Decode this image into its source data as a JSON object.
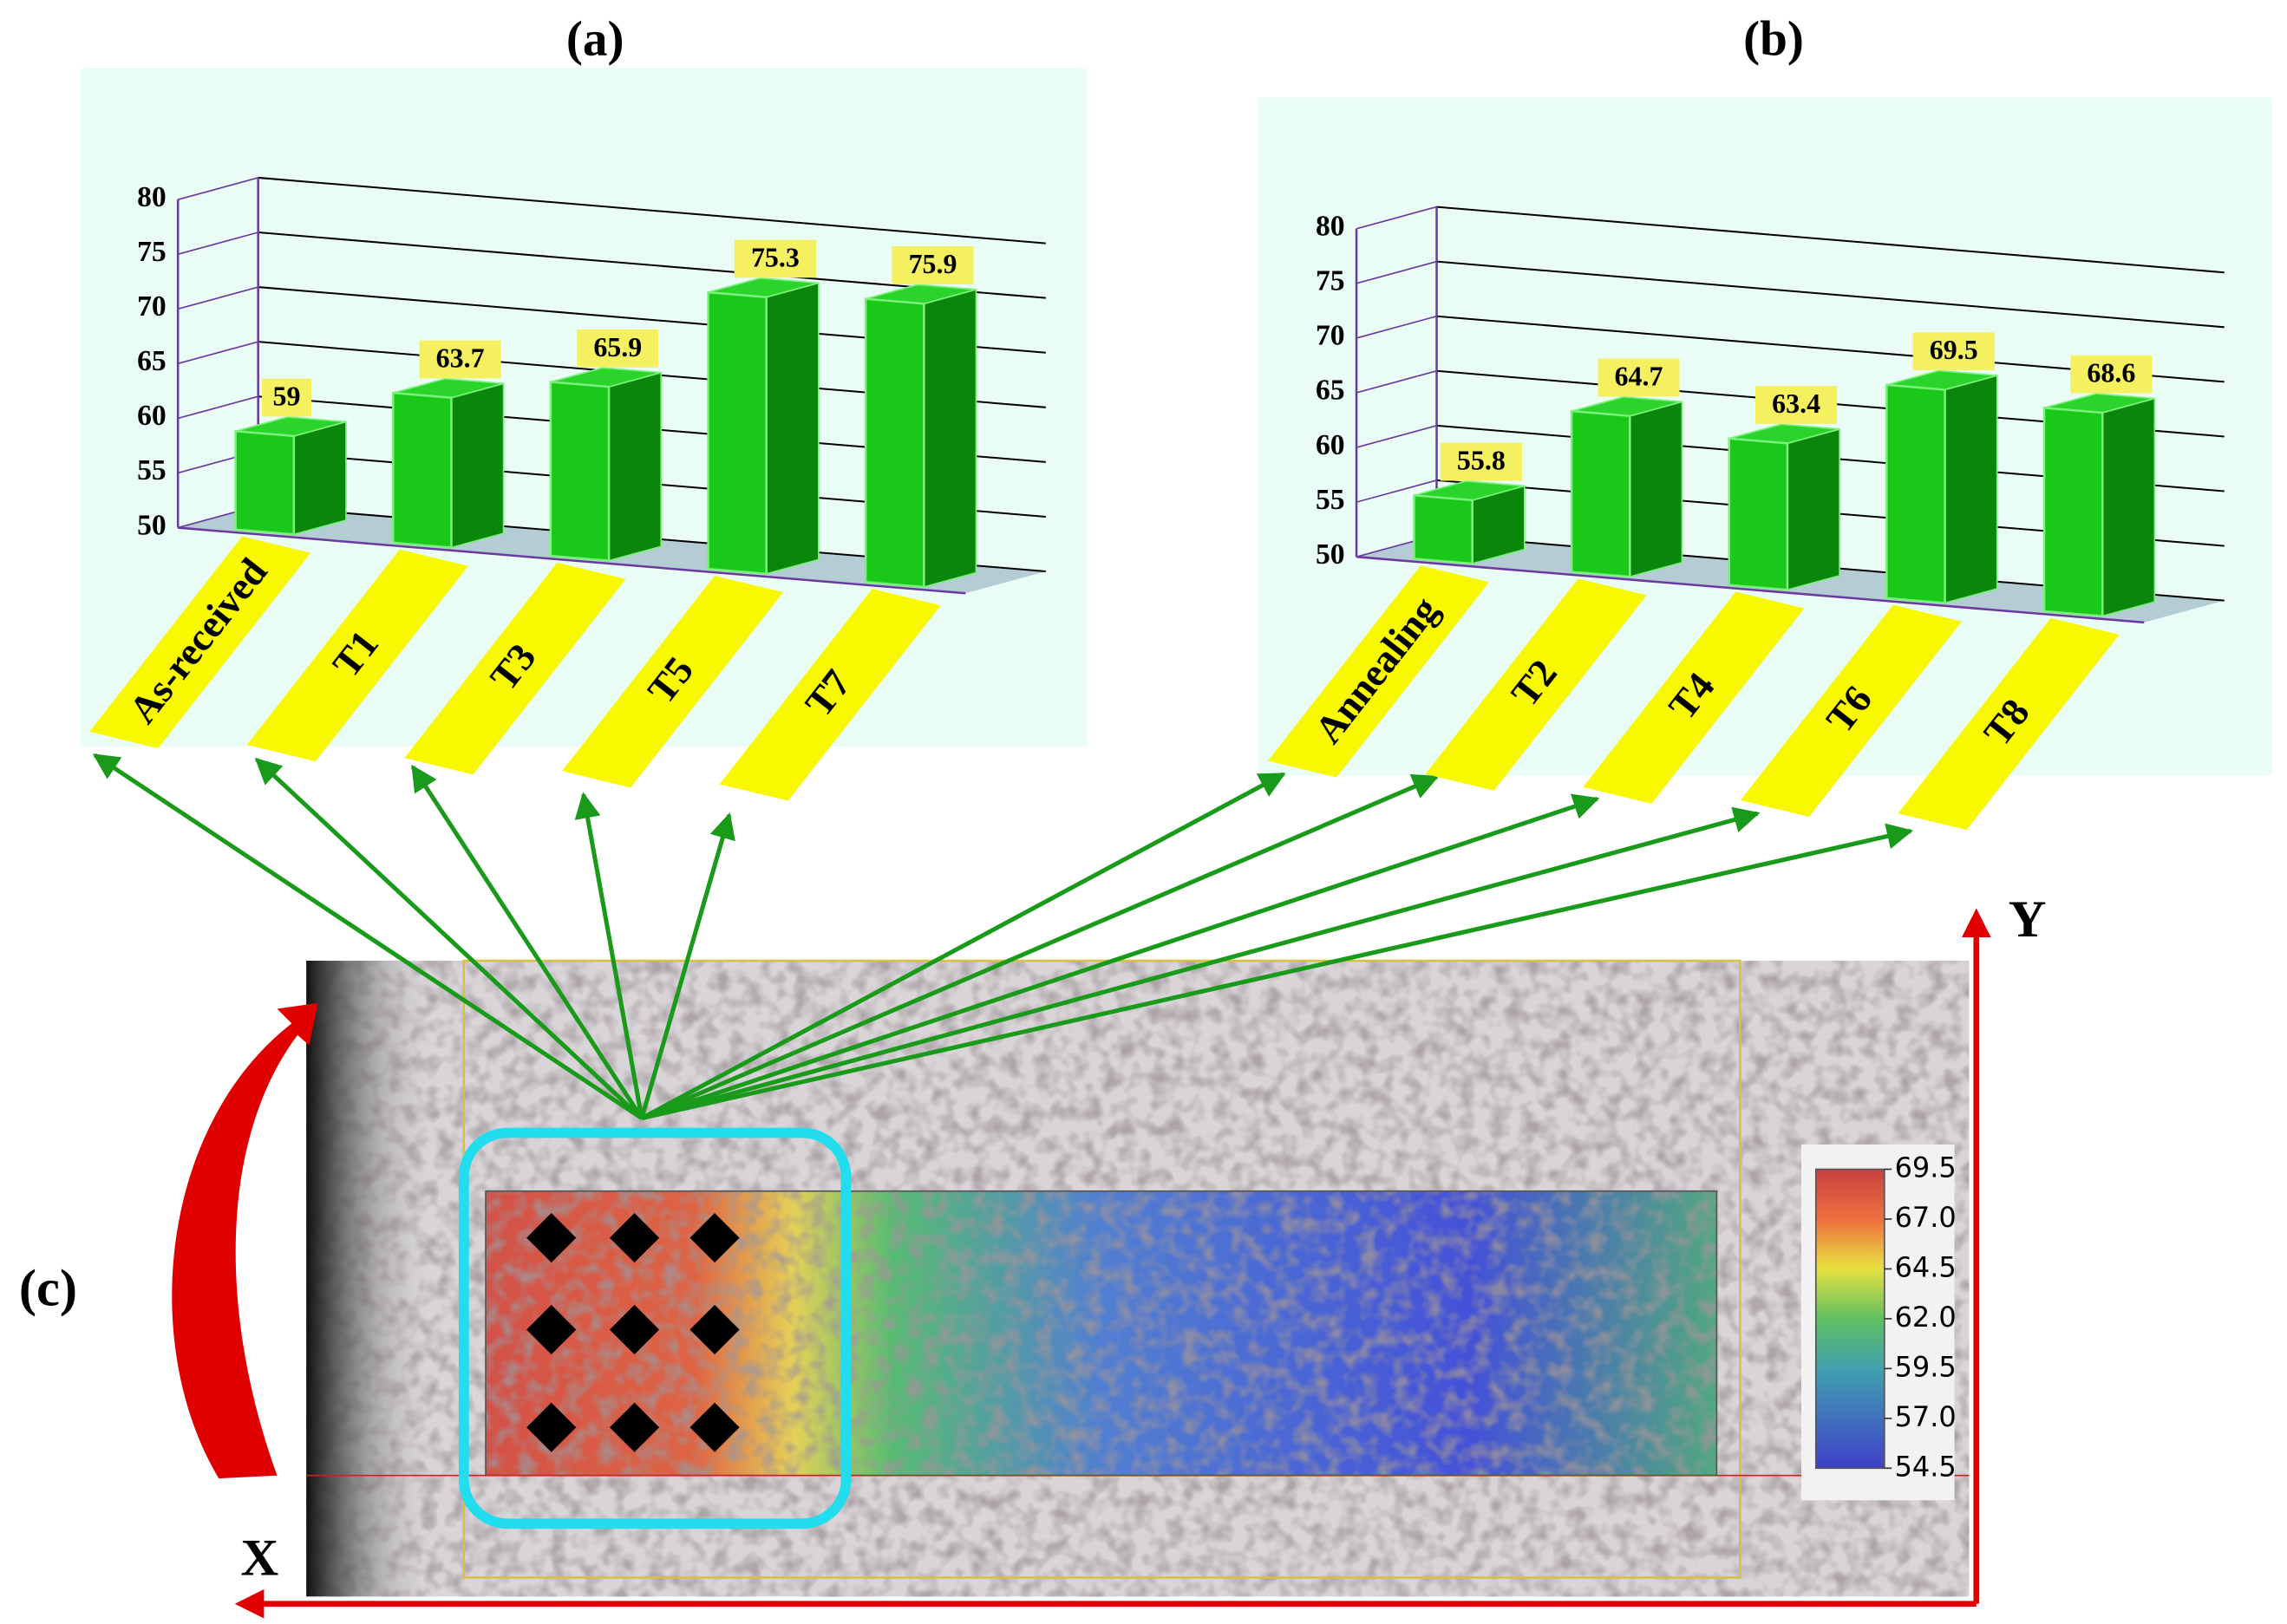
{
  "chart_data": [
    {
      "type": "bar3d",
      "title": "(a)",
      "categories": [
        "As-received",
        "T1",
        "T3",
        "T5",
        "T7"
      ],
      "values": [
        59,
        63.7,
        65.9,
        75.3,
        75.9
      ],
      "color": "#19c819",
      "ylim": [
        50,
        80
      ],
      "yticks": [
        50,
        55,
        60,
        65,
        70,
        75,
        80
      ],
      "grid": true
    },
    {
      "type": "bar3d",
      "title": "(b)",
      "categories": [
        "Annealing",
        "T2",
        "T4",
        "T6",
        "T8"
      ],
      "values": [
        55.8,
        64.7,
        63.4,
        69.5,
        68.6
      ],
      "color": "#19c819",
      "ylim": [
        50,
        80
      ],
      "yticks": [
        50,
        55,
        60,
        65,
        70,
        75,
        80
      ],
      "grid": true
    },
    {
      "type": "heatmap",
      "title": "(c)",
      "xlabel": "X",
      "ylabel": "Y",
      "colorbar_lim": [
        54.5,
        69.5
      ],
      "colorbar_ticks": [
        54.5,
        {
          "value": 57,
          "label": "57.0"
        },
        59.5,
        {
          "value": 62,
          "label": "62.0"
        },
        64.5,
        {
          "value": 67,
          "label": "67.0"
        },
        69.5
      ]
    }
  ]
}
